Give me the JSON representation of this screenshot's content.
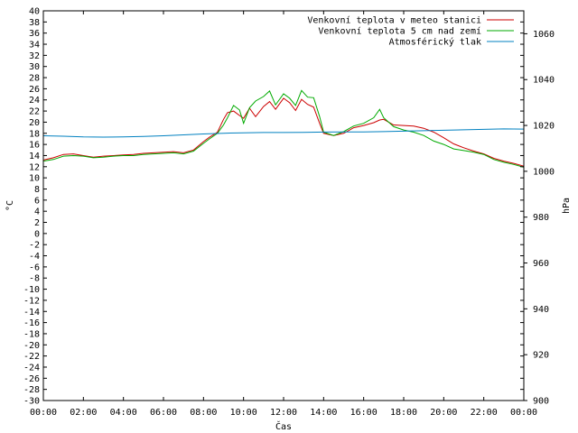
{
  "chart_data": {
    "type": "line",
    "title": "",
    "xlabel": "Čas",
    "ylabel": "°C",
    "y2label": "hPa",
    "ylim": [
      -30,
      40
    ],
    "y2lim": [
      900,
      1070
    ],
    "xlim": [
      "00:00",
      "24:00"
    ],
    "grid": false,
    "legend_position": "top-right",
    "x_ticks": [
      "00:00",
      "02:00",
      "04:00",
      "06:00",
      "08:00",
      "10:00",
      "12:00",
      "14:00",
      "16:00",
      "18:00",
      "20:00",
      "22:00",
      "00:00"
    ],
    "y_ticks": [
      "-30",
      "-28",
      "-26",
      "-24",
      "-22",
      "-20",
      "-18",
      "-16",
      "-14",
      "-12",
      "-10",
      "-8",
      "-6",
      "-4",
      "-2",
      "0",
      "2",
      "4",
      "6",
      "8",
      "10",
      "12",
      "14",
      "16",
      "18",
      "20",
      "22",
      "24",
      "26",
      "28",
      "30",
      "32",
      "34",
      "36",
      "38",
      "40"
    ],
    "y2_ticks": [
      "900",
      "920",
      "940",
      "960",
      "980",
      "1000",
      "1020",
      "1040",
      "1060"
    ],
    "series": [
      {
        "name": "Venkovní teplota v meteo stanici",
        "color": "#cc0000",
        "axis": "left",
        "x": [
          0,
          0.5,
          1,
          1.5,
          2,
          2.5,
          3,
          3.5,
          4,
          4.5,
          5,
          5.5,
          6,
          6.5,
          7,
          7.5,
          8,
          8.3,
          8.7,
          9,
          9.2,
          9.5,
          9.8,
          10,
          10.3,
          10.6,
          11,
          11.3,
          11.6,
          12,
          12.3,
          12.6,
          12.9,
          13.2,
          13.5,
          13.8,
          14,
          14.5,
          15,
          15.5,
          16,
          16.5,
          16.8,
          17,
          17.5,
          18,
          18.5,
          19,
          19.5,
          20,
          20.5,
          21,
          21.5,
          22,
          22.5,
          23,
          23.5,
          24
        ],
        "y": [
          13.2,
          13.6,
          14.2,
          14.3,
          14.0,
          13.7,
          13.9,
          14.0,
          14.1,
          14.2,
          14.4,
          14.5,
          14.6,
          14.7,
          14.5,
          15.0,
          16.5,
          17.3,
          18.2,
          20.5,
          21.7,
          22.0,
          21.2,
          20.7,
          22.5,
          21.0,
          22.8,
          23.7,
          22.3,
          24.3,
          23.5,
          22.1,
          24.1,
          23.2,
          22.7,
          19.8,
          18.0,
          17.6,
          18.0,
          19.0,
          19.4,
          19.9,
          20.4,
          20.5,
          19.5,
          19.4,
          19.3,
          18.9,
          18.2,
          17.2,
          16.1,
          15.4,
          14.8,
          14.3,
          13.5,
          13.0,
          12.6,
          12.1
        ]
      },
      {
        "name": "Venkovní teplota 5 cm nad zemí",
        "color": "#00aa00",
        "axis": "left",
        "x": [
          0,
          0.5,
          1,
          1.5,
          2,
          2.5,
          3,
          3.5,
          4,
          4.5,
          5,
          5.5,
          6,
          6.5,
          7,
          7.5,
          8,
          8.3,
          8.7,
          9,
          9.2,
          9.5,
          9.8,
          10,
          10.3,
          10.6,
          11,
          11.3,
          11.6,
          12,
          12.3,
          12.6,
          12.9,
          13.2,
          13.5,
          13.8,
          14,
          14.5,
          15,
          15.5,
          16,
          16.5,
          16.8,
          17,
          17.5,
          18,
          18.5,
          19,
          19.5,
          20,
          20.5,
          21,
          21.5,
          22,
          22.5,
          23,
          23.5,
          24
        ],
        "y": [
          13.0,
          13.3,
          13.9,
          14.0,
          13.9,
          13.6,
          13.7,
          13.9,
          14.0,
          14.0,
          14.2,
          14.3,
          14.4,
          14.5,
          14.3,
          14.8,
          16.2,
          17.0,
          18.0,
          19.5,
          20.8,
          23.0,
          22.2,
          19.8,
          22.6,
          23.8,
          24.6,
          25.6,
          23.1,
          25.1,
          24.3,
          23.0,
          25.7,
          24.5,
          24.4,
          21.0,
          18.2,
          17.6,
          18.3,
          19.3,
          19.8,
          20.8,
          22.3,
          20.8,
          19.2,
          18.6,
          18.2,
          17.6,
          16.6,
          16.0,
          15.2,
          14.9,
          14.6,
          14.2,
          13.3,
          12.8,
          12.4,
          11.9
        ]
      },
      {
        "name": "Atmosférický tlak",
        "color": "#0080c0",
        "axis": "right",
        "x": [
          0,
          1,
          2,
          3,
          4,
          5,
          6,
          7,
          8,
          9,
          10,
          11,
          12,
          13,
          14,
          15,
          16,
          17,
          18,
          19,
          20,
          21,
          22,
          23,
          24
        ],
        "y": [
          1015.5,
          1015.3,
          1015.0,
          1014.9,
          1015.0,
          1015.2,
          1015.5,
          1015.9,
          1016.3,
          1016.6,
          1016.8,
          1016.9,
          1016.9,
          1017.0,
          1017.1,
          1017.2,
          1017.2,
          1017.3,
          1017.5,
          1017.7,
          1017.9,
          1018.1,
          1018.3,
          1018.5,
          1018.4
        ]
      }
    ]
  }
}
